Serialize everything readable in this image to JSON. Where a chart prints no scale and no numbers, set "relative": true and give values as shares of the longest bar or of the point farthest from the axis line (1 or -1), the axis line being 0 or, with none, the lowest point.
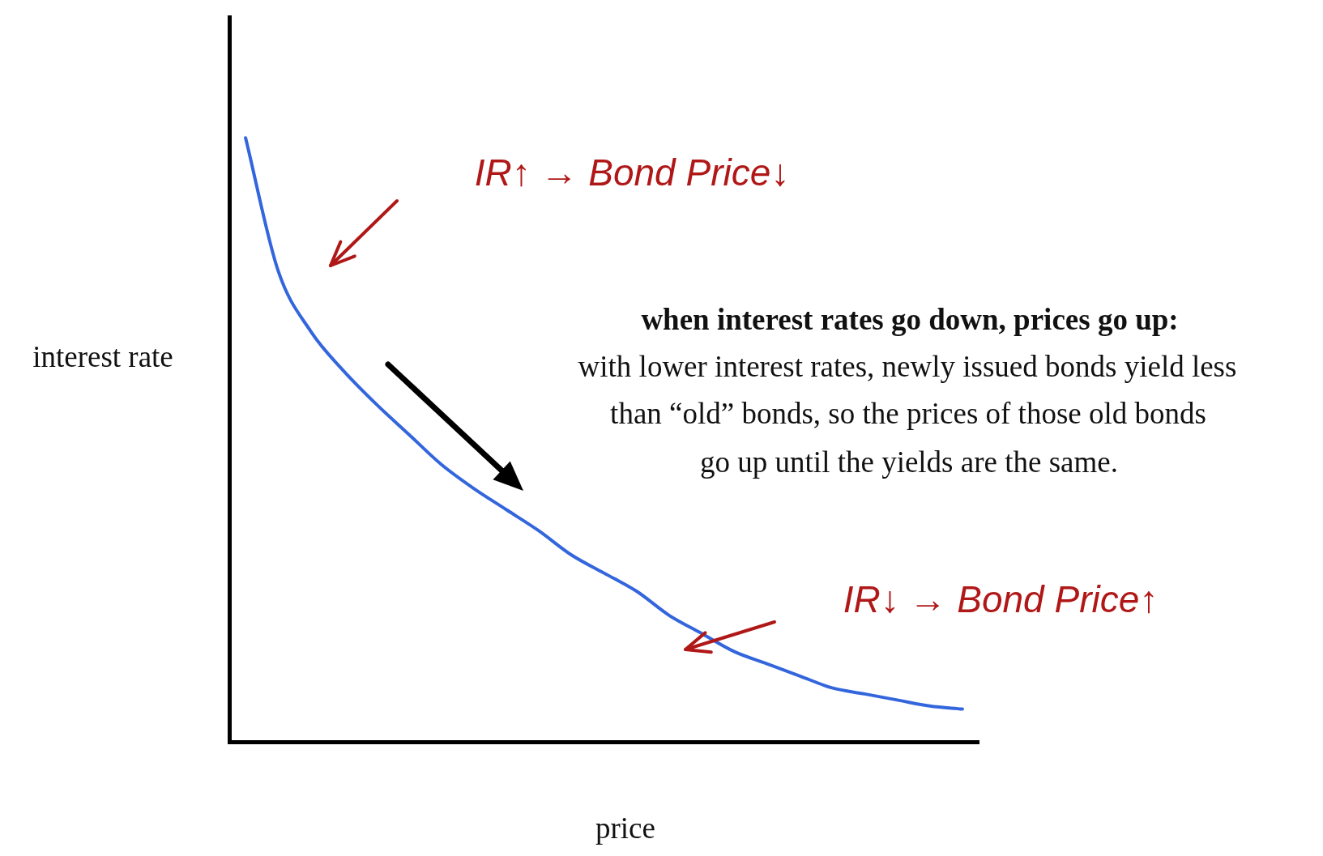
{
  "chart_data": {
    "type": "line",
    "relative": true,
    "xlabel": "price",
    "ylabel": "interest rate",
    "categories": [
      null,
      null,
      null,
      null,
      null,
      null,
      null,
      null,
      null,
      null,
      null,
      null,
      null,
      null,
      null,
      null,
      null,
      null,
      null,
      null,
      null,
      null,
      null
    ],
    "series": [
      {
        "color": "#3366dd",
        "values": [
          1,
          0.78,
          0.68,
          0.615,
          0.56,
          0.51,
          0.46,
          0.42,
          0.385,
          0.35,
          0.31,
          0.28,
          0.25,
          0.21,
          0.18,
          0.15,
          0.13,
          0.11,
          0.09,
          0.08,
          0.07,
          0.06,
          0.055
        ]
      }
    ],
    "annotations": [
      "IR↑ → Bond Price↓",
      "when interest rates go down, prices go up:",
      "with lower interest rates, newly issued bonds yield less",
      "than “old” bonds, so the prices of those old bonds",
      "go up until the yields are the same.",
      "IR↓ → Bond Price↑"
    ],
    "grid": false,
    "legend": false,
    "marker": "none",
    "line_style": "solid"
  }
}
